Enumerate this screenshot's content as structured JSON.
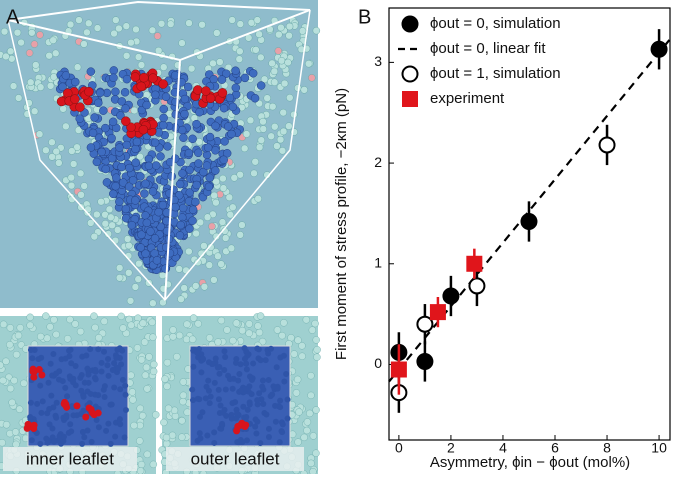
{
  "panel_a": {
    "label": "A",
    "insets": [
      "inner leaflet",
      "outer leaflet"
    ]
  },
  "chart_data": {
    "type": "scatter",
    "panel_label": "B",
    "xlabel": "Asymmetry, ϕin − ϕout (mol%)",
    "ylabel": "First moment of stress profile, −2κm (pN)",
    "xlim": [
      -0.38,
      10.42
    ],
    "ylim": [
      -0.75,
      3.54
    ],
    "xticks": [
      0,
      2,
      4,
      6,
      8,
      10
    ],
    "yticks": [
      0,
      1,
      2,
      3
    ],
    "legend": "upper left",
    "series": [
      {
        "name": "ϕout = 0, simulation",
        "marker": "filled-circle",
        "color": "#000000",
        "x": [
          0,
          1,
          2,
          5,
          10
        ],
        "values": [
          0.12,
          0.03,
          0.68,
          1.42,
          3.13
        ],
        "errors": [
          0.2,
          0.2,
          0.2,
          0.2,
          0.2
        ]
      },
      {
        "name": "ϕout = 0, linear fit",
        "marker": "dashed-line",
        "color": "#000000",
        "x": [
          -0.38,
          10.42
        ],
        "values": [
          -0.17,
          3.23
        ]
      },
      {
        "name": "ϕout = 1, simulation",
        "marker": "open-circle",
        "color": "#000000",
        "x": [
          0,
          1,
          3,
          8
        ],
        "values": [
          -0.28,
          0.4,
          0.78,
          2.18
        ],
        "errors": [
          0.2,
          0.2,
          0.2,
          0.2
        ]
      },
      {
        "name": "experiment",
        "marker": "square",
        "color": "#e0151b",
        "x": [
          0,
          1.5,
          2.9
        ],
        "values": [
          -0.05,
          0.52,
          1.0
        ],
        "errors": [
          0.25,
          0.15,
          0.15
        ]
      }
    ]
  }
}
